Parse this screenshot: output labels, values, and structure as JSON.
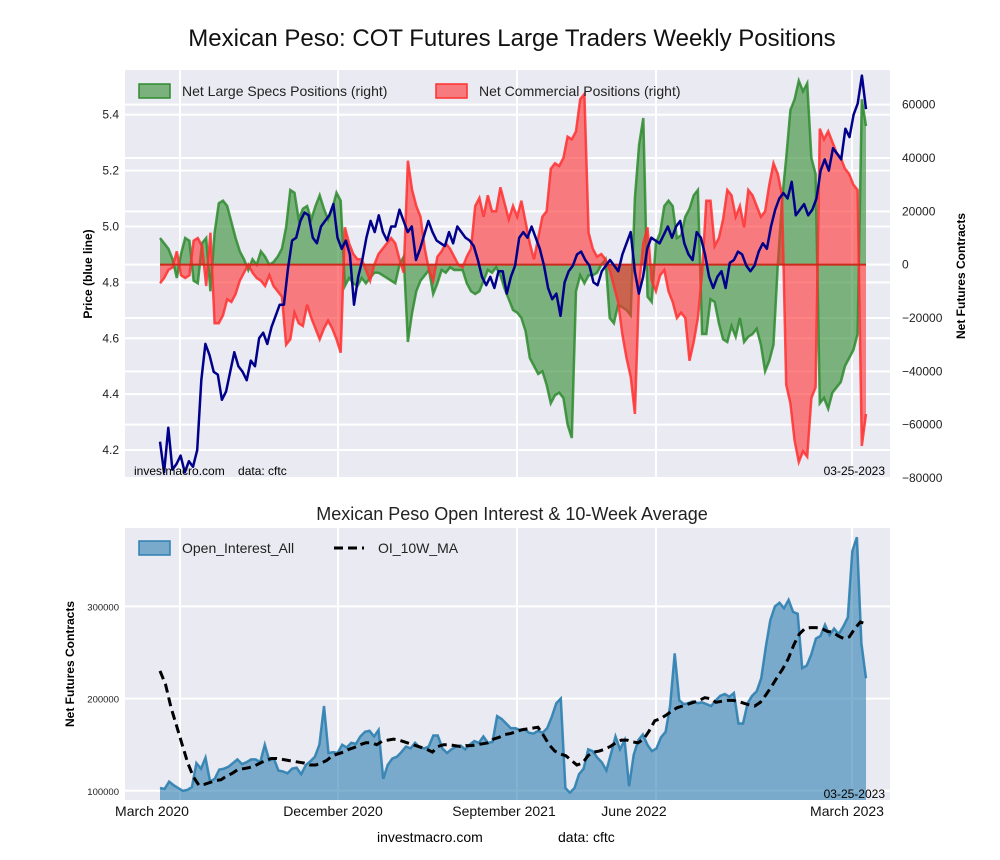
{
  "chart_data": [
    {
      "type": "line+area",
      "title": "Mexican Peso: COT Futures Large Traders Weekly Positions",
      "ylabel_left": "Price (blue line)",
      "ylabel_right": "Net Futures Contracts",
      "ylim_left": [
        4.1,
        5.56
      ],
      "ylim_right": [
        -80000,
        73000
      ],
      "yticks_left": [
        "4.2",
        "4.4",
        "4.6",
        "4.8",
        "5.0",
        "5.2",
        "5.4"
      ],
      "yticks_right": [
        "-80000",
        "-60000",
        "-40000",
        "-20000",
        "0",
        "20000",
        "40000",
        "60000"
      ],
      "grid": true,
      "legend_position": "top-left",
      "annotations": {
        "watermark": "investmacro.com    data: cftc",
        "date": "03-25-2023"
      },
      "series": [
        {
          "name": "Net Large Specs Positions (right)",
          "color": "#2e8b2e",
          "values": [
            10000,
            8000,
            6000,
            2000,
            -5000,
            4000,
            10000,
            9000,
            -6000,
            -7000,
            8000,
            10000,
            -10000,
            12000,
            23000,
            24000,
            22000,
            16000,
            10000,
            5000,
            2000,
            -2000,
            2000,
            0,
            5000,
            3000,
            0,
            1000,
            3000,
            6000,
            14000,
            28000,
            27000,
            17000,
            21000,
            22000,
            17000,
            22000,
            26000,
            21000,
            17000,
            21000,
            27000,
            24000,
            -8000,
            -5000,
            -7000,
            -8000,
            -5000,
            -7000,
            -5000,
            -3000,
            -3000,
            -4000,
            -5000,
            -6000,
            -7000,
            0,
            3000,
            -29000,
            -18000,
            -10000,
            -6000,
            -4000,
            -2000,
            -11000,
            -7000,
            -2000,
            -3000,
            -1000,
            -2000,
            -2000,
            -2000,
            -7000,
            -10000,
            -11000,
            -10000,
            -6000,
            -2000,
            -3000,
            -1000,
            -4000,
            -9000,
            -13000,
            -17000,
            -18000,
            -20000,
            -25000,
            -35000,
            -38000,
            -41000,
            -40000,
            -45000,
            -52000,
            -49000,
            -48000,
            -50000,
            -60000,
            -65000,
            -10000,
            -4000,
            -7000,
            -4000,
            -4000,
            -3000,
            0,
            2000,
            -20000,
            -22000,
            -15000,
            -16000,
            -17000,
            -19000,
            25000,
            45000,
            55000,
            -12000,
            -14000,
            8000,
            12000,
            22000,
            24000,
            22000,
            10000,
            11000,
            18000,
            21000,
            26000,
            28000,
            -26000,
            -26000,
            -13000,
            -14000,
            -22000,
            -28000,
            -29000,
            -23000,
            -27000,
            -20000,
            -29000,
            -27000,
            -26000,
            -24000,
            -30000,
            -40000,
            -36000,
            -30000,
            0,
            24000,
            40000,
            58000,
            62000,
            69000,
            65000,
            68000,
            40000,
            34000,
            -52000,
            -50000,
            -54000,
            -48000,
            -46000,
            -44000,
            -38000,
            -35000,
            -32000,
            -26000,
            62000,
            52000
          ]
        },
        {
          "name": "Net Commercial Positions (right)",
          "color": "#ff3030",
          "values": [
            -7000,
            -5000,
            -2000,
            -1000,
            5000,
            -4000,
            -5000,
            -4000,
            9000,
            10000,
            7000,
            -8000,
            12000,
            -22000,
            -22000,
            -19000,
            -13000,
            -14000,
            -11000,
            -6000,
            -3000,
            0,
            -3000,
            -5000,
            -6000,
            -8000,
            -4000,
            -8000,
            -10000,
            -12000,
            -30000,
            -28000,
            -18000,
            -22000,
            -23000,
            -15000,
            -20000,
            -24000,
            -28000,
            -24000,
            -21000,
            -24000,
            -28000,
            -33000,
            14000,
            8000,
            4000,
            2000,
            2000,
            -2000,
            -6000,
            0,
            4000,
            6000,
            8000,
            10000,
            8000,
            2000,
            -3000,
            39000,
            28000,
            22000,
            18000,
            6000,
            -2000,
            -6000,
            3000,
            5000,
            8000,
            6000,
            3000,
            0,
            -1000,
            3000,
            6000,
            22000,
            25000,
            18000,
            26000,
            20000,
            20000,
            29000,
            23000,
            17000,
            22000,
            18000,
            24000,
            16000,
            8000,
            2000,
            10000,
            18000,
            20000,
            36000,
            38000,
            37000,
            40000,
            48000,
            47000,
            50000,
            62000,
            64000,
            12000,
            6000,
            3000,
            4000,
            2000,
            -2000,
            -8000,
            -14000,
            -26000,
            -35000,
            -42000,
            -56000,
            -8000,
            8000,
            14000,
            -6000,
            -10000,
            -4000,
            -2000,
            -10000,
            -14000,
            -20000,
            -18000,
            -20000,
            -36000,
            -29000,
            -20000,
            -3000,
            24000,
            24000,
            7000,
            10000,
            17000,
            28000,
            26000,
            18000,
            22000,
            14000,
            28000,
            26000,
            22000,
            18000,
            20000,
            30000,
            38000,
            34000,
            26000,
            -45000,
            -52000,
            -66000,
            -74000,
            -70000,
            -72000,
            -50000,
            -46000,
            51000,
            47000,
            50000,
            46000,
            42000,
            40000,
            36000,
            34000,
            30000,
            28000,
            -68000,
            -56000
          ]
        },
        {
          "name": "Price (blue line)",
          "color": "#00008b",
          "values": [
            4.23,
            4.12,
            4.28,
            4.13,
            4.15,
            4.18,
            4.12,
            4.16,
            4.14,
            4.2,
            4.45,
            4.58,
            4.54,
            4.48,
            4.47,
            4.38,
            4.41,
            4.48,
            4.55,
            4.5,
            4.48,
            4.45,
            4.52,
            4.5,
            4.6,
            4.62,
            4.58,
            4.64,
            4.68,
            4.72,
            4.72,
            4.85,
            4.95,
            4.96,
            5.02,
            5.05,
            5.04,
            4.96,
            4.94,
            5.0,
            5.02,
            5.04,
            5.08,
            4.96,
            4.92,
            4.95,
            4.9,
            4.72,
            4.82,
            4.88,
            4.96,
            5.02,
            4.98,
            5.04,
            4.98,
            4.95,
            5.0,
            5.0,
            5.06,
            5.02,
            4.98,
            5.0,
            4.88,
            4.92,
            4.97,
            5.02,
            4.98,
            4.95,
            4.94,
            4.93,
            4.98,
            4.94,
            5.0,
            4.98,
            4.96,
            4.95,
            4.93,
            4.88,
            4.82,
            4.79,
            4.82,
            4.78,
            4.84,
            4.84,
            4.76,
            4.82,
            4.86,
            4.96,
            4.98,
            4.96,
            5.0,
            4.96,
            4.92,
            4.86,
            4.78,
            4.74,
            4.76,
            4.68,
            4.8,
            4.84,
            4.86,
            4.9,
            4.91,
            4.88,
            4.86,
            4.8,
            4.79,
            4.84,
            4.86,
            4.88,
            4.86,
            4.84,
            4.9,
            4.94,
            4.98,
            4.84,
            4.76,
            4.82,
            4.92,
            4.96,
            4.95,
            4.94,
            4.97,
            5.0,
            4.96,
            5.0,
            5.02,
            4.94,
            4.9,
            4.88,
            4.98,
            4.96,
            4.9,
            4.82,
            4.78,
            4.82,
            4.84,
            4.78,
            4.87,
            4.88,
            4.91,
            4.9,
            4.86,
            4.84,
            4.86,
            4.91,
            4.94,
            4.92,
            5.0,
            5.06,
            5.1,
            5.12,
            5.1,
            5.16,
            5.04,
            5.06,
            5.08,
            5.04,
            5.06,
            5.1,
            5.2,
            5.24,
            5.2,
            5.28,
            5.26,
            5.24,
            5.35,
            5.32,
            5.4,
            5.44,
            5.54,
            5.42
          ]
        }
      ]
    },
    {
      "type": "area+line",
      "title": "Mexican Peso Open Interest & 10-Week Average",
      "ylabel": "Net Futures Contracts",
      "ylim": [
        90000,
        385000
      ],
      "yticks": [
        "100000",
        "200000",
        "300000"
      ],
      "xtick_labels": [
        "March 2020",
        "December 2020",
        "September 2021",
        "June 2022",
        "March 2023"
      ],
      "grid": true,
      "legend_position": "top-left",
      "annotations": {
        "date": "03-25-2023"
      },
      "series": [
        {
          "name": "Open_Interest_All",
          "color": "#2e7fb0",
          "values": [
            103000,
            102000,
            110000,
            106000,
            103000,
            100000,
            101000,
            104000,
            130000,
            124000,
            136000,
            110000,
            113000,
            123000,
            124000,
            126000,
            130000,
            134000,
            129000,
            131000,
            134000,
            134000,
            131000,
            150000,
            133000,
            135000,
            122000,
            121000,
            119000,
            124000,
            125000,
            118000,
            128000,
            132000,
            137000,
            150000,
            192000,
            141000,
            142000,
            141000,
            150000,
            147000,
            152000,
            151000,
            159000,
            164000,
            165000,
            159000,
            166000,
            113000,
            128000,
            135000,
            137000,
            142000,
            148000,
            146000,
            152000,
            147000,
            146000,
            148000,
            160000,
            160000,
            146000,
            141000,
            145000,
            148000,
            149000,
            145000,
            150000,
            154000,
            152000,
            159000,
            152000,
            153000,
            181000,
            178000,
            173000,
            168000,
            168000,
            166000,
            167000,
            163000,
            162000,
            165000,
            163000,
            168000,
            180000,
            195000,
            200000,
            103000,
            98000,
            103000,
            118000,
            124000,
            145000,
            143000,
            136000,
            131000,
            122000,
            140000,
            159000,
            145000,
            155000,
            105000,
            139000,
            155000,
            161000,
            150000,
            143000,
            146000,
            158000,
            164000,
            192000,
            249000,
            198000,
            194000,
            195000,
            197000,
            195000,
            196000,
            194000,
            192000,
            198000,
            203000,
            205000,
            202000,
            206000,
            173000,
            173000,
            195000,
            203000,
            208000,
            222000,
            256000,
            285000,
            300000,
            304000,
            298000,
            307000,
            294000,
            292000,
            233000,
            236000,
            248000,
            265000,
            268000,
            280000,
            269000,
            276000,
            270000,
            278000,
            288000,
            360000,
            375000,
            260000,
            222000
          ]
        },
        {
          "name": "OI_10W_MA",
          "color": "#000000",
          "values": [
            230000,
            215000,
            190000,
            170000,
            150000,
            130000,
            115000,
            106000,
            107000,
            109000,
            111000,
            112000,
            116000,
            119000,
            123000,
            124000,
            125000,
            127000,
            130000,
            133000,
            135000,
            135000,
            134000,
            133000,
            132000,
            131000,
            130000,
            128000,
            128000,
            130000,
            133000,
            138000,
            140000,
            142000,
            145000,
            147000,
            150000,
            152000,
            152000,
            150000,
            154000,
            155000,
            156000,
            155000,
            153000,
            151000,
            149000,
            147000,
            145000,
            142000,
            148000,
            150000,
            150000,
            149000,
            148000,
            149000,
            149000,
            150000,
            151000,
            152000,
            156000,
            158000,
            161000,
            162000,
            164000,
            166000,
            167000,
            168000,
            169000,
            160000,
            150000,
            143000,
            140000,
            138000,
            133000,
            128000,
            130000,
            138000,
            142000,
            143000,
            145000,
            148000,
            152000,
            155000,
            155000,
            153000,
            152000,
            156000,
            165000,
            176000,
            178000,
            182000,
            186000,
            190000,
            192000,
            194000,
            196000,
            198000,
            201000,
            200000,
            196000,
            197000,
            198000,
            198000,
            197000,
            195000,
            193000,
            192000,
            196000,
            204000,
            213000,
            223000,
            232000,
            243000,
            258000,
            270000,
            276000,
            277000,
            277000,
            276000,
            273000,
            272000,
            268000,
            265000,
            267000,
            276000,
            283000,
            281000
          ]
        }
      ]
    }
  ],
  "footer": {
    "left": "investmacro.com",
    "right": "data: cftc"
  }
}
